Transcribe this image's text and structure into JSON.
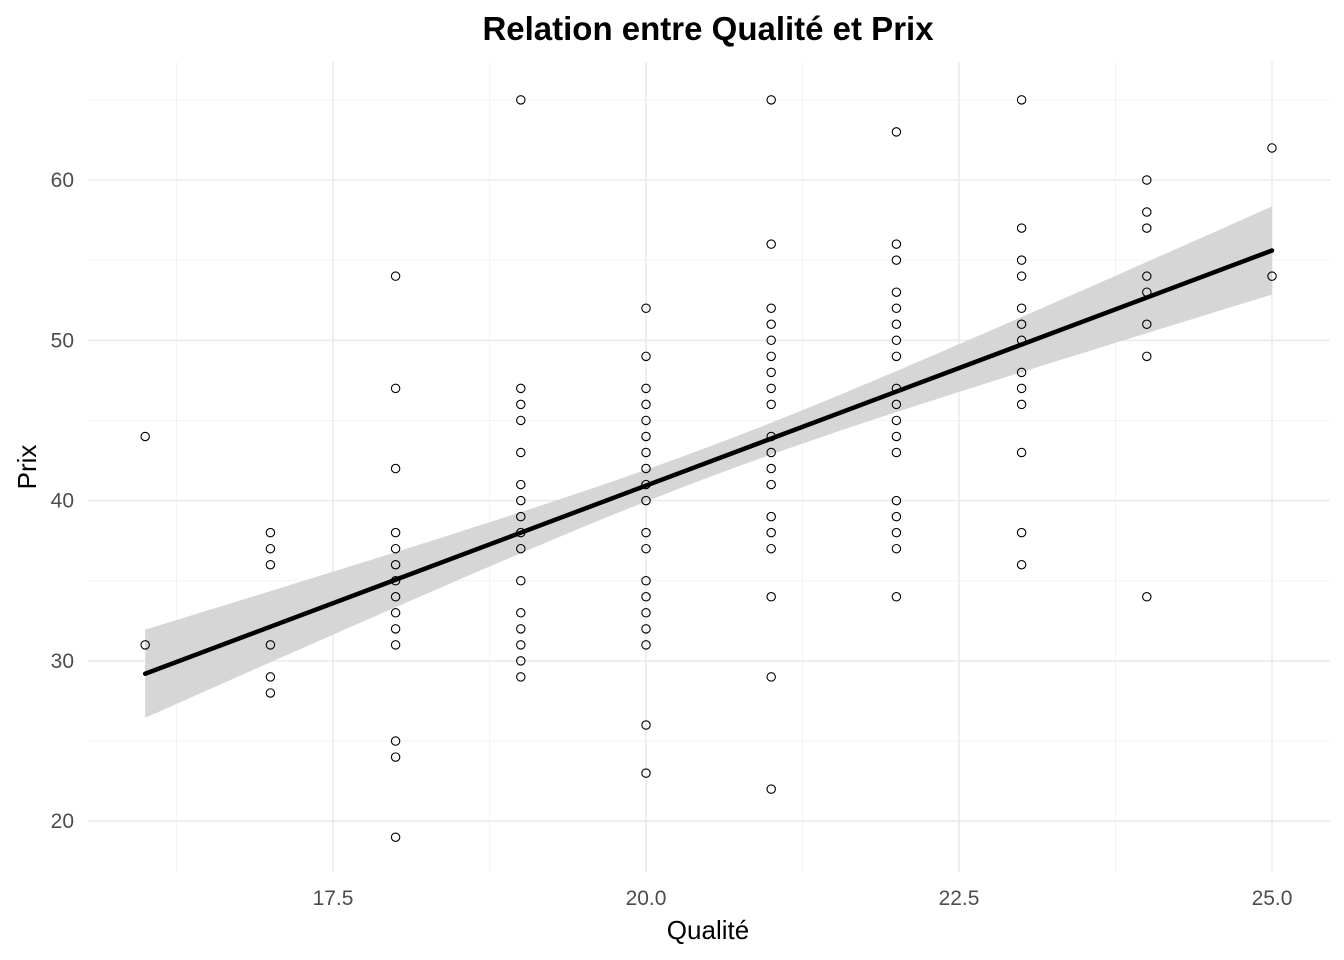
{
  "chart_data": {
    "type": "scatter",
    "title": "Relation entre Qualité et Prix",
    "xlabel": "Qualité",
    "ylabel": "Prix",
    "xlim": [
      15.7,
      25.9
    ],
    "ylim": [
      17,
      66
    ],
    "xticks": [
      "17.5",
      "20.0",
      "22.5",
      "25.0"
    ],
    "yticks": [
      "20",
      "30",
      "40",
      "50",
      "60"
    ],
    "grid": true,
    "points": [
      {
        "x": 16,
        "y": 44
      },
      {
        "x": 16,
        "y": 31
      },
      {
        "x": 17,
        "y": 38
      },
      {
        "x": 17,
        "y": 37
      },
      {
        "x": 17,
        "y": 36
      },
      {
        "x": 17,
        "y": 31
      },
      {
        "x": 17,
        "y": 29
      },
      {
        "x": 17,
        "y": 28
      },
      {
        "x": 18,
        "y": 54
      },
      {
        "x": 18,
        "y": 47
      },
      {
        "x": 18,
        "y": 42
      },
      {
        "x": 18,
        "y": 38
      },
      {
        "x": 18,
        "y": 37
      },
      {
        "x": 18,
        "y": 36
      },
      {
        "x": 18,
        "y": 35
      },
      {
        "x": 18,
        "y": 34
      },
      {
        "x": 18,
        "y": 33
      },
      {
        "x": 18,
        "y": 32
      },
      {
        "x": 18,
        "y": 31
      },
      {
        "x": 18,
        "y": 25
      },
      {
        "x": 18,
        "y": 24
      },
      {
        "x": 18,
        "y": 19
      },
      {
        "x": 19,
        "y": 65
      },
      {
        "x": 19,
        "y": 47
      },
      {
        "x": 19,
        "y": 46
      },
      {
        "x": 19,
        "y": 45
      },
      {
        "x": 19,
        "y": 43
      },
      {
        "x": 19,
        "y": 41
      },
      {
        "x": 19,
        "y": 40
      },
      {
        "x": 19,
        "y": 39
      },
      {
        "x": 19,
        "y": 38
      },
      {
        "x": 19,
        "y": 37
      },
      {
        "x": 19,
        "y": 35
      },
      {
        "x": 19,
        "y": 33
      },
      {
        "x": 19,
        "y": 32
      },
      {
        "x": 19,
        "y": 31
      },
      {
        "x": 19,
        "y": 30
      },
      {
        "x": 19,
        "y": 29
      },
      {
        "x": 20,
        "y": 52
      },
      {
        "x": 20,
        "y": 49
      },
      {
        "x": 20,
        "y": 47
      },
      {
        "x": 20,
        "y": 46
      },
      {
        "x": 20,
        "y": 45
      },
      {
        "x": 20,
        "y": 44
      },
      {
        "x": 20,
        "y": 43
      },
      {
        "x": 20,
        "y": 42
      },
      {
        "x": 20,
        "y": 41
      },
      {
        "x": 20,
        "y": 40
      },
      {
        "x": 20,
        "y": 38
      },
      {
        "x": 20,
        "y": 37
      },
      {
        "x": 20,
        "y": 35
      },
      {
        "x": 20,
        "y": 34
      },
      {
        "x": 20,
        "y": 33
      },
      {
        "x": 20,
        "y": 32
      },
      {
        "x": 20,
        "y": 31
      },
      {
        "x": 20,
        "y": 26
      },
      {
        "x": 20,
        "y": 23
      },
      {
        "x": 21,
        "y": 65
      },
      {
        "x": 21,
        "y": 56
      },
      {
        "x": 21,
        "y": 52
      },
      {
        "x": 21,
        "y": 51
      },
      {
        "x": 21,
        "y": 50
      },
      {
        "x": 21,
        "y": 49
      },
      {
        "x": 21,
        "y": 48
      },
      {
        "x": 21,
        "y": 47
      },
      {
        "x": 21,
        "y": 46
      },
      {
        "x": 21,
        "y": 44
      },
      {
        "x": 21,
        "y": 43
      },
      {
        "x": 21,
        "y": 42
      },
      {
        "x": 21,
        "y": 41
      },
      {
        "x": 21,
        "y": 39
      },
      {
        "x": 21,
        "y": 38
      },
      {
        "x": 21,
        "y": 37
      },
      {
        "x": 21,
        "y": 34
      },
      {
        "x": 21,
        "y": 29
      },
      {
        "x": 21,
        "y": 22
      },
      {
        "x": 22,
        "y": 63
      },
      {
        "x": 22,
        "y": 56
      },
      {
        "x": 22,
        "y": 55
      },
      {
        "x": 22,
        "y": 53
      },
      {
        "x": 22,
        "y": 52
      },
      {
        "x": 22,
        "y": 51
      },
      {
        "x": 22,
        "y": 50
      },
      {
        "x": 22,
        "y": 49
      },
      {
        "x": 22,
        "y": 47
      },
      {
        "x": 22,
        "y": 46
      },
      {
        "x": 22,
        "y": 45
      },
      {
        "x": 22,
        "y": 44
      },
      {
        "x": 22,
        "y": 43
      },
      {
        "x": 22,
        "y": 40
      },
      {
        "x": 22,
        "y": 39
      },
      {
        "x": 22,
        "y": 38
      },
      {
        "x": 22,
        "y": 37
      },
      {
        "x": 22,
        "y": 34
      },
      {
        "x": 23,
        "y": 65
      },
      {
        "x": 23,
        "y": 57
      },
      {
        "x": 23,
        "y": 55
      },
      {
        "x": 23,
        "y": 54
      },
      {
        "x": 23,
        "y": 52
      },
      {
        "x": 23,
        "y": 51
      },
      {
        "x": 23,
        "y": 50
      },
      {
        "x": 23,
        "y": 48
      },
      {
        "x": 23,
        "y": 47
      },
      {
        "x": 23,
        "y": 46
      },
      {
        "x": 23,
        "y": 43
      },
      {
        "x": 23,
        "y": 38
      },
      {
        "x": 23,
        "y": 36
      },
      {
        "x": 24,
        "y": 60
      },
      {
        "x": 24,
        "y": 58
      },
      {
        "x": 24,
        "y": 57
      },
      {
        "x": 24,
        "y": 54
      },
      {
        "x": 24,
        "y": 53
      },
      {
        "x": 24,
        "y": 51
      },
      {
        "x": 24,
        "y": 49
      },
      {
        "x": 24,
        "y": 34
      },
      {
        "x": 25,
        "y": 62
      },
      {
        "x": 25,
        "y": 54
      }
    ],
    "fit": {
      "method": "linear",
      "x_range": [
        16,
        25
      ],
      "y_at_start": 29.2,
      "y_at_end": 55.6,
      "ci_at_start": [
        26.4,
        32.1
      ],
      "ci_at_center": [
        40.1,
        42.0
      ],
      "ci_at_end": [
        53.0,
        58.3
      ],
      "line_color": "#000000",
      "ribbon_color": "#d6d6d6"
    }
  }
}
